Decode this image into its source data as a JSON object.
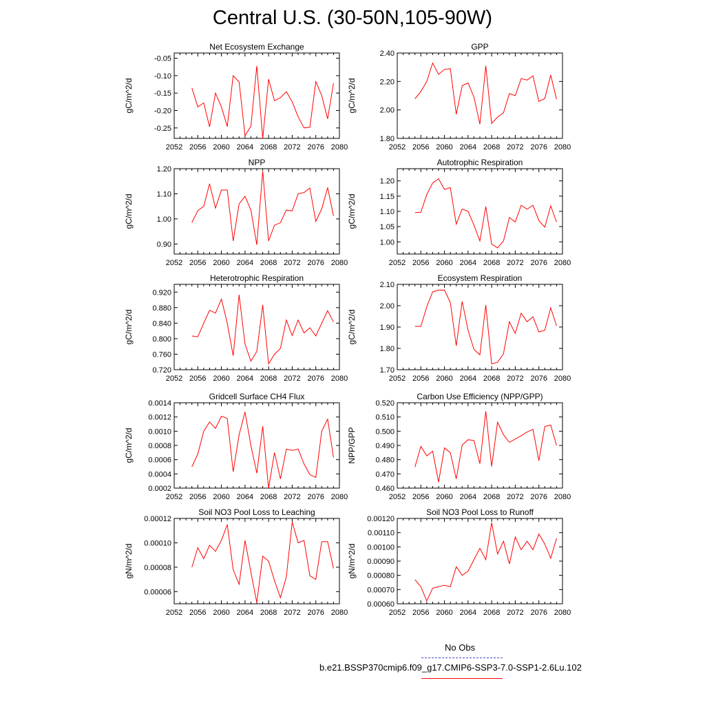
{
  "page": {
    "title": "Central U.S. (30-50N,105-90W)"
  },
  "legend": {
    "entries": [
      {
        "label": "No Obs",
        "color": "#4444cc",
        "style": "dashed"
      },
      {
        "label": "b.e21.BSSP370cmip6.f09_g17.CMIP6-SSP3-7.0-SSP1-2.6Lu.102",
        "color": "#ff0000",
        "style": "solid"
      }
    ]
  },
  "chart_data": [
    {
      "type": "line",
      "title": "Net Ecosystem Exchange",
      "xlabel": "",
      "ylabel": "gC/m^2/d",
      "xlim": [
        2052,
        2080
      ],
      "ylim": [
        -0.28,
        -0.035
      ],
      "xticks": [
        2052,
        2056,
        2060,
        2064,
        2068,
        2072,
        2076,
        2080
      ],
      "xtick_labels": [
        "2052",
        "2056",
        "2060",
        "2064",
        "2068",
        "2072",
        "2076",
        "2080"
      ],
      "yticks": [
        -0.25,
        -0.2,
        -0.15,
        -0.1,
        -0.05
      ],
      "ytick_labels": [
        "-0.25",
        "-0.20",
        "-0.15",
        "-0.10",
        "-0.05"
      ],
      "x": [
        2055,
        2056,
        2057,
        2058,
        2059,
        2060,
        2061,
        2062,
        2063,
        2064,
        2065,
        2066,
        2067,
        2068,
        2069,
        2070,
        2071,
        2072,
        2073,
        2074,
        2075,
        2076,
        2077,
        2078,
        2079
      ],
      "series": [
        {
          "color": "#ff0000",
          "values": [
            -0.135,
            -0.19,
            -0.178,
            -0.247,
            -0.15,
            -0.19,
            -0.246,
            -0.1,
            -0.118,
            -0.272,
            -0.245,
            -0.072,
            -0.28,
            -0.11,
            -0.172,
            -0.163,
            -0.146,
            -0.175,
            -0.218,
            -0.25,
            -0.248,
            -0.117,
            -0.157,
            -0.224,
            -0.122
          ]
        }
      ]
    },
    {
      "type": "line",
      "title": "GPP",
      "xlabel": "",
      "ylabel": "gC/m^2/d",
      "xlim": [
        2052,
        2080
      ],
      "ylim": [
        1.8,
        2.4
      ],
      "xticks": [
        2052,
        2056,
        2060,
        2064,
        2068,
        2072,
        2076,
        2080
      ],
      "xtick_labels": [
        "2052",
        "2056",
        "2060",
        "2064",
        "2068",
        "2072",
        "2076",
        "2080"
      ],
      "yticks": [
        1.8,
        2.0,
        2.2,
        2.4
      ],
      "ytick_labels": [
        "1.80",
        "2.00",
        "2.20",
        "2.40"
      ],
      "x": [
        2055,
        2056,
        2057,
        2058,
        2059,
        2060,
        2061,
        2062,
        2063,
        2064,
        2065,
        2066,
        2067,
        2068,
        2069,
        2070,
        2071,
        2072,
        2073,
        2074,
        2075,
        2076,
        2077,
        2078,
        2079
      ],
      "series": [
        {
          "color": "#ff0000",
          "values": [
            2.078,
            2.13,
            2.2,
            2.33,
            2.25,
            2.285,
            2.29,
            1.97,
            2.17,
            2.19,
            2.09,
            1.9,
            2.31,
            1.905,
            1.95,
            1.98,
            2.115,
            2.1,
            2.22,
            2.21,
            2.24,
            2.06,
            2.08,
            2.245,
            2.075
          ]
        }
      ]
    },
    {
      "type": "line",
      "title": "NPP",
      "xlabel": "",
      "ylabel": "gC/m^2/d",
      "xlim": [
        2052,
        2080
      ],
      "ylim": [
        0.86,
        1.2
      ],
      "xticks": [
        2052,
        2056,
        2060,
        2064,
        2068,
        2072,
        2076,
        2080
      ],
      "xtick_labels": [
        "2052",
        "2056",
        "2060",
        "2064",
        "2068",
        "2072",
        "2076",
        "2080"
      ],
      "yticks": [
        0.9,
        1.0,
        1.1,
        1.2
      ],
      "ytick_labels": [
        "0.90",
        "1.00",
        "1.10",
        "1.20"
      ],
      "x": [
        2055,
        2056,
        2057,
        2058,
        2059,
        2060,
        2061,
        2062,
        2063,
        2064,
        2065,
        2066,
        2067,
        2068,
        2069,
        2070,
        2071,
        2072,
        2073,
        2074,
        2075,
        2076,
        2077,
        2078,
        2079
      ],
      "series": [
        {
          "color": "#ff0000",
          "values": [
            0.985,
            1.033,
            1.05,
            1.14,
            1.043,
            1.115,
            1.115,
            0.912,
            1.06,
            1.09,
            1.035,
            0.897,
            1.19,
            0.912,
            0.975,
            0.985,
            1.035,
            1.032,
            1.1,
            1.105,
            1.123,
            0.99,
            1.04,
            1.125,
            1.012
          ]
        }
      ]
    },
    {
      "type": "line",
      "title": "Autotrophic Respiration",
      "xlabel": "",
      "ylabel": "gC/m^2/d",
      "xlim": [
        2052,
        2080
      ],
      "ylim": [
        0.96,
        1.24
      ],
      "xticks": [
        2052,
        2056,
        2060,
        2064,
        2068,
        2072,
        2076,
        2080
      ],
      "xtick_labels": [
        "2052",
        "2056",
        "2060",
        "2064",
        "2068",
        "2072",
        "2076",
        "2080"
      ],
      "yticks": [
        1.0,
        1.05,
        1.1,
        1.15,
        1.2
      ],
      "ytick_labels": [
        "1.00",
        "1.05",
        "1.10",
        "1.15",
        "1.20"
      ],
      "x": [
        2055,
        2056,
        2057,
        2058,
        2059,
        2060,
        2061,
        2062,
        2063,
        2064,
        2065,
        2066,
        2067,
        2068,
        2069,
        2070,
        2071,
        2072,
        2073,
        2074,
        2075,
        2076,
        2077,
        2078,
        2079
      ],
      "series": [
        {
          "color": "#ff0000",
          "values": [
            1.096,
            1.097,
            1.155,
            1.193,
            1.207,
            1.172,
            1.178,
            1.058,
            1.108,
            1.1,
            1.055,
            1.003,
            1.116,
            0.993,
            0.98,
            1.003,
            1.08,
            1.065,
            1.12,
            1.107,
            1.12,
            1.07,
            1.048,
            1.118,
            1.065
          ]
        }
      ]
    },
    {
      "type": "line",
      "title": "Heterotrophic Respiration",
      "xlabel": "",
      "ylabel": "gC/m^2/d",
      "xlim": [
        2052,
        2080
      ],
      "ylim": [
        0.72,
        0.94
      ],
      "xticks": [
        2052,
        2056,
        2060,
        2064,
        2068,
        2072,
        2076,
        2080
      ],
      "xtick_labels": [
        "2052",
        "2056",
        "2060",
        "2064",
        "2068",
        "2072",
        "2076",
        "2080"
      ],
      "yticks": [
        0.72,
        0.76,
        0.8,
        0.84,
        0.88,
        0.92
      ],
      "ytick_labels": [
        "0.720",
        "0.760",
        "0.800",
        "0.840",
        "0.880",
        "0.920"
      ],
      "x": [
        2055,
        2056,
        2057,
        2058,
        2059,
        2060,
        2061,
        2062,
        2063,
        2064,
        2065,
        2066,
        2067,
        2068,
        2069,
        2070,
        2071,
        2072,
        2073,
        2074,
        2075,
        2076,
        2077,
        2078,
        2079
      ],
      "series": [
        {
          "color": "#ff0000",
          "values": [
            0.807,
            0.805,
            0.84,
            0.873,
            0.866,
            0.902,
            0.84,
            0.756,
            0.913,
            0.786,
            0.742,
            0.767,
            0.887,
            0.735,
            0.76,
            0.775,
            0.848,
            0.808,
            0.848,
            0.815,
            0.828,
            0.807,
            0.84,
            0.872,
            0.843
          ]
        }
      ]
    },
    {
      "type": "line",
      "title": "Ecosystem Respiration",
      "xlabel": "",
      "ylabel": "gC/m^2/d",
      "xlim": [
        2052,
        2080
      ],
      "ylim": [
        1.7,
        2.1
      ],
      "xticks": [
        2052,
        2056,
        2060,
        2064,
        2068,
        2072,
        2076,
        2080
      ],
      "xtick_labels": [
        "2052",
        "2056",
        "2060",
        "2064",
        "2068",
        "2072",
        "2076",
        "2080"
      ],
      "yticks": [
        1.7,
        1.8,
        1.9,
        2.0,
        2.1
      ],
      "ytick_labels": [
        "1.70",
        "1.80",
        "1.90",
        "2.00",
        "2.10"
      ],
      "x": [
        2055,
        2056,
        2057,
        2058,
        2059,
        2060,
        2061,
        2062,
        2063,
        2064,
        2065,
        2066,
        2067,
        2068,
        2069,
        2070,
        2071,
        2072,
        2073,
        2074,
        2075,
        2076,
        2077,
        2078,
        2079
      ],
      "series": [
        {
          "color": "#ff0000",
          "values": [
            1.903,
            1.903,
            1.995,
            2.065,
            2.073,
            2.073,
            2.015,
            1.812,
            2.02,
            1.885,
            1.795,
            1.77,
            2.003,
            1.727,
            1.735,
            1.775,
            1.925,
            1.87,
            1.965,
            1.925,
            1.948,
            1.877,
            1.885,
            1.99,
            1.905
          ]
        }
      ]
    },
    {
      "type": "line",
      "title": "Gridcell Surface CH4 Flux",
      "xlabel": "",
      "ylabel": "gC/m^2/d",
      "xlim": [
        2052,
        2080
      ],
      "ylim": [
        0.0002,
        0.0014
      ],
      "xticks": [
        2052,
        2056,
        2060,
        2064,
        2068,
        2072,
        2076,
        2080
      ],
      "xtick_labels": [
        "2052",
        "2056",
        "2060",
        "2064",
        "2068",
        "2072",
        "2076",
        "2080"
      ],
      "yticks": [
        0.0002,
        0.0004,
        0.0006,
        0.0008,
        0.001,
        0.0012,
        0.0014
      ],
      "ytick_labels": [
        "0.0002",
        "0.0004",
        "0.0006",
        "0.0008",
        "0.0010",
        "0.0012",
        "0.0014"
      ],
      "x": [
        2055,
        2056,
        2057,
        2058,
        2059,
        2060,
        2061,
        2062,
        2063,
        2064,
        2065,
        2066,
        2067,
        2068,
        2069,
        2070,
        2071,
        2072,
        2073,
        2074,
        2075,
        2076,
        2077,
        2078,
        2079
      ],
      "series": [
        {
          "color": "#ff0000",
          "values": [
            0.0005,
            0.00068,
            0.001,
            0.00113,
            0.00104,
            0.00121,
            0.00118,
            0.00043,
            0.00095,
            0.00127,
            0.0008,
            0.00041,
            0.00107,
            0.0002,
            0.0007,
            0.00033,
            0.00075,
            0.00073,
            0.00075,
            0.00054,
            0.00039,
            0.00035,
            0.001,
            0.00117,
            0.00063
          ]
        }
      ]
    },
    {
      "type": "line",
      "title": "Carbon Use Efficiency (NPP/GPP)",
      "xlabel": "",
      "ylabel": "NPP/GPP",
      "xlim": [
        2052,
        2080
      ],
      "ylim": [
        0.46,
        0.52
      ],
      "xticks": [
        2052,
        2056,
        2060,
        2064,
        2068,
        2072,
        2076,
        2080
      ],
      "xtick_labels": [
        "2052",
        "2056",
        "2060",
        "2064",
        "2068",
        "2072",
        "2076",
        "2080"
      ],
      "yticks": [
        0.46,
        0.47,
        0.48,
        0.49,
        0.5,
        0.51,
        0.52
      ],
      "ytick_labels": [
        "0.460",
        "0.470",
        "0.480",
        "0.490",
        "0.500",
        "0.510",
        "0.520"
      ],
      "x": [
        2055,
        2056,
        2057,
        2058,
        2059,
        2060,
        2061,
        2062,
        2063,
        2064,
        2065,
        2066,
        2067,
        2068,
        2069,
        2070,
        2071,
        2072,
        2073,
        2074,
        2075,
        2076,
        2077,
        2078,
        2079
      ],
      "series": [
        {
          "color": "#ff0000",
          "values": [
            0.4748,
            0.4893,
            0.4827,
            0.486,
            0.4642,
            0.4883,
            0.4848,
            0.4665,
            0.4903,
            0.494,
            0.4935,
            0.4772,
            0.514,
            0.4752,
            0.5063,
            0.4975,
            0.4922,
            0.4945,
            0.4968,
            0.4995,
            0.5013,
            0.4793,
            0.5033,
            0.5043,
            0.49
          ]
        }
      ]
    },
    {
      "type": "line",
      "title": "Soil NO3 Pool Loss to Leaching",
      "xlabel": "",
      "ylabel": "gN/m^2/d",
      "xlim": [
        2052,
        2080
      ],
      "ylim": [
        5e-05,
        0.00012
      ],
      "xticks": [
        2052,
        2056,
        2060,
        2064,
        2068,
        2072,
        2076,
        2080
      ],
      "xtick_labels": [
        "2052",
        "2056",
        "2060",
        "2064",
        "2068",
        "2072",
        "2076",
        "2080"
      ],
      "yticks": [
        6e-05,
        8e-05,
        0.0001,
        0.00012
      ],
      "ytick_labels": [
        "0.00006",
        "0.00008",
        "0.00010",
        "0.00012"
      ],
      "x": [
        2055,
        2056,
        2057,
        2058,
        2059,
        2060,
        2061,
        2062,
        2063,
        2064,
        2065,
        2066,
        2067,
        2068,
        2069,
        2070,
        2071,
        2072,
        2073,
        2074,
        2075,
        2076,
        2077,
        2078,
        2079
      ],
      "series": [
        {
          "color": "#ff0000",
          "values": [
            8e-05,
            9.6e-05,
            8.7e-05,
            9.8e-05,
            9.3e-05,
            0.000102,
            0.000115,
            7.8e-05,
            6.6e-05,
            0.000102,
            7.6e-05,
            5.1e-05,
            8.9e-05,
            8.5e-05,
            6.9e-05,
            5.5e-05,
            7.2e-05,
            0.000117,
            0.0001,
            0.000102,
            7.3e-05,
            7e-05,
            0.000101,
            0.000101,
            7.9e-05
          ]
        }
      ]
    },
    {
      "type": "line",
      "title": "Soil NO3 Pool Loss to Runoff",
      "xlabel": "",
      "ylabel": "gN/m^2/d",
      "xlim": [
        2052,
        2080
      ],
      "ylim": [
        0.0006,
        0.0012
      ],
      "xticks": [
        2052,
        2056,
        2060,
        2064,
        2068,
        2072,
        2076,
        2080
      ],
      "xtick_labels": [
        "2052",
        "2056",
        "2060",
        "2064",
        "2068",
        "2072",
        "2076",
        "2080"
      ],
      "yticks": [
        0.0006,
        0.0007,
        0.0008,
        0.0009,
        0.001,
        0.0011,
        0.0012
      ],
      "ytick_labels": [
        "0.00060",
        "0.00070",
        "0.00080",
        "0.00090",
        "0.00100",
        "0.00110",
        "0.00120"
      ],
      "x": [
        2055,
        2056,
        2057,
        2058,
        2059,
        2060,
        2061,
        2062,
        2063,
        2064,
        2065,
        2066,
        2067,
        2068,
        2069,
        2070,
        2071,
        2072,
        2073,
        2074,
        2075,
        2076,
        2077,
        2078,
        2079
      ],
      "series": [
        {
          "color": "#ff0000",
          "values": [
            0.00077,
            0.00072,
            0.00062,
            0.00071,
            0.00072,
            0.00073,
            0.00072,
            0.00086,
            0.0008,
            0.00083,
            0.00091,
            0.00099,
            0.00091,
            0.00117,
            0.00095,
            0.00104,
            0.00088,
            0.00107,
            0.00098,
            0.00104,
            0.00098,
            0.00109,
            0.00102,
            0.00092,
            0.00106
          ]
        }
      ]
    }
  ]
}
